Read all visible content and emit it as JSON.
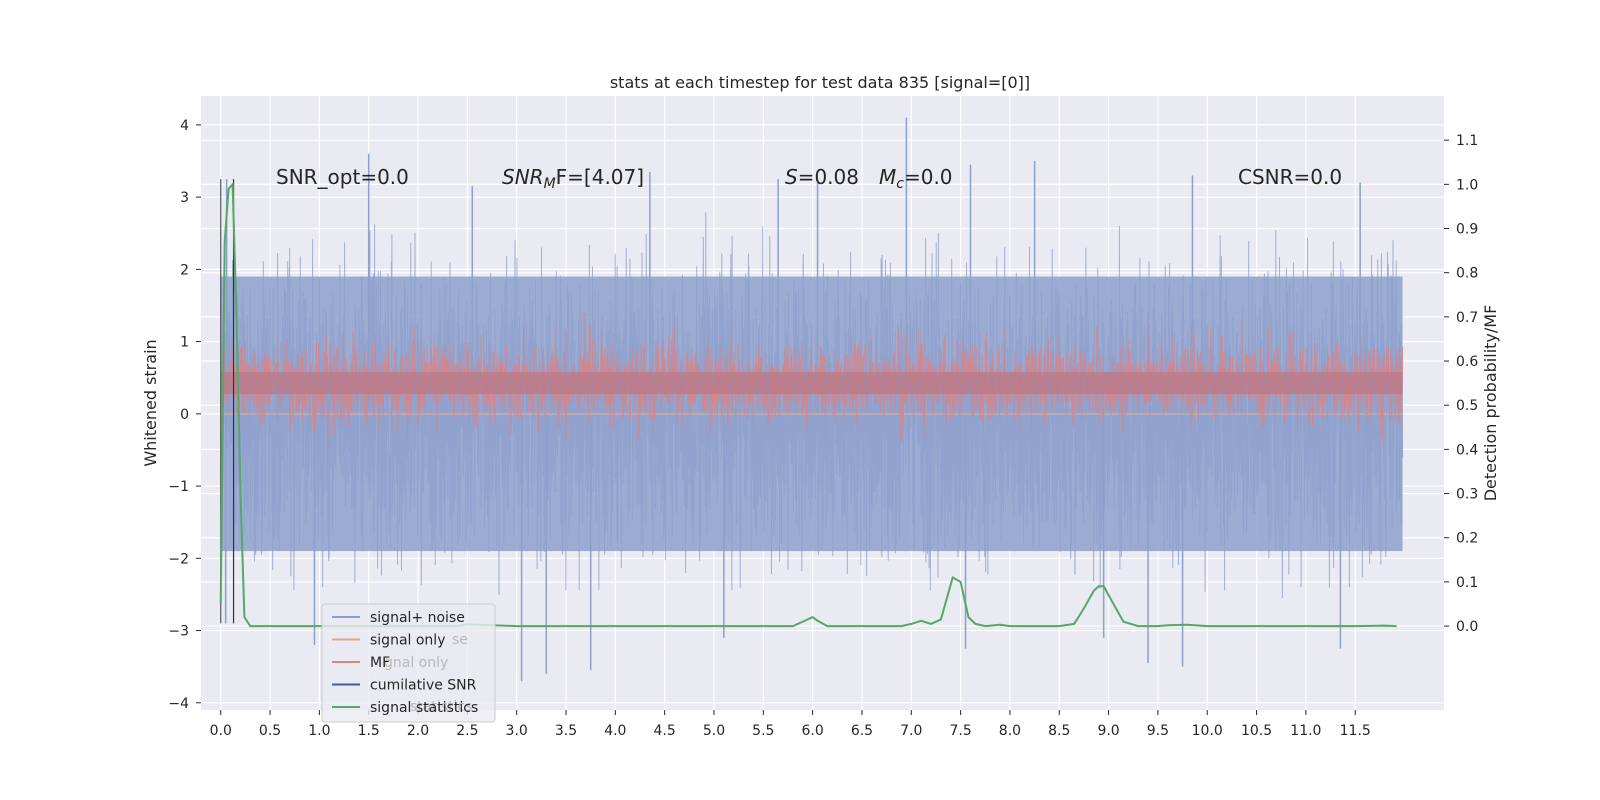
{
  "chart_data": {
    "type": "line",
    "title": "stats at each timestep for test data 835 [signal=[0]]",
    "ylabel": "Whitened strain",
    "ylabel_right": "Detection probability/MF",
    "xlim": [
      -0.2,
      12.4
    ],
    "ylim": [
      -4.1,
      4.4
    ],
    "ylim_right": [
      -0.19,
      1.2
    ],
    "x_ticks": [
      "0.0",
      "0.5",
      "1.0",
      "1.5",
      "2.0",
      "2.5",
      "3.0",
      "3.5",
      "4.0",
      "4.5",
      "5.0",
      "5.5",
      "6.0",
      "6.5",
      "7.0",
      "7.5",
      "8.0",
      "8.5",
      "9.0",
      "9.5",
      "10.0",
      "10.5",
      "11.0",
      "11.5"
    ],
    "x_tick_values": [
      0.0,
      0.5,
      1.0,
      1.5,
      2.0,
      2.5,
      3.0,
      3.5,
      4.0,
      4.5,
      5.0,
      5.5,
      6.0,
      6.5,
      7.0,
      7.5,
      8.0,
      8.5,
      9.0,
      9.5,
      10.0,
      10.5,
      11.0,
      11.5
    ],
    "y_ticks": [
      "4",
      "3",
      "2",
      "1",
      "0",
      "−1",
      "−2",
      "−3",
      "−4"
    ],
    "y_tick_values": [
      4,
      3,
      2,
      1,
      0,
      -1,
      -2,
      -3,
      -4
    ],
    "y_ticks_right": [
      "1.1",
      "1.0",
      "0.9",
      "0.8",
      "0.7",
      "0.6",
      "0.5",
      "0.4",
      "0.3",
      "0.2",
      "0.1",
      "0.0"
    ],
    "y_tick_values_right": [
      1.1,
      1.0,
      0.9,
      0.8,
      0.7,
      0.6,
      0.5,
      0.4,
      0.3,
      0.2,
      0.1,
      0.0
    ],
    "grid": true,
    "annotations": {
      "snr_opt": "SNR_opt=0.0",
      "snr_mf_main": "SNR",
      "snr_mf_sub": "M",
      "snr_mf_rest": "F=[4.07]",
      "s_main": "S",
      "s_rest": "=0.08",
      "mc_main": "M",
      "mc_sub": "c",
      "mc_rest": "=0.0",
      "csnr": "CSNR=0.0"
    },
    "legend": {
      "placement": "lower-left",
      "entries": [
        {
          "label": "signal+ noise",
          "color": "#8da0cb"
        },
        {
          "label": "signal only",
          "color": "#e0a58a"
        },
        {
          "label": "MF",
          "color": "#d98486"
        },
        {
          "label": "cumilative SNR",
          "color": "#3b5ba5"
        },
        {
          "label": "signal statistics",
          "color": "#55a868"
        }
      ],
      "ghost_entries": [
        "se",
        "gnal only",
        "statistics"
      ]
    },
    "series": [
      {
        "name": "signal+ noise",
        "color": "#8da0cb",
        "x_range": [
          0.0,
          11.98
        ],
        "band": [
          -1.9,
          1.9
        ],
        "peaks_high": [
          [
            0.06,
            3.25
          ],
          [
            1.5,
            3.6
          ],
          [
            2.55,
            3.15
          ],
          [
            4.35,
            3.35
          ],
          [
            5.65,
            3.25
          ],
          [
            6.05,
            3.25
          ],
          [
            6.95,
            4.1
          ],
          [
            7.6,
            3.45
          ],
          [
            8.25,
            3.5
          ],
          [
            9.85,
            3.3
          ],
          [
            11.55,
            3.2
          ]
        ],
        "peaks_low": [
          [
            0.05,
            -2.9
          ],
          [
            0.95,
            -3.2
          ],
          [
            3.05,
            -3.7
          ],
          [
            3.3,
            -3.6
          ],
          [
            3.75,
            -3.55
          ],
          [
            5.1,
            -3.1
          ],
          [
            7.55,
            -3.25
          ],
          [
            8.95,
            -3.1
          ],
          [
            9.4,
            -3.45
          ],
          [
            9.75,
            -3.5
          ],
          [
            11.35,
            -3.25
          ]
        ]
      },
      {
        "name": "signal only",
        "color": "#e0a58a",
        "x": [
          0.0,
          11.98
        ],
        "values": [
          0.0,
          0.0
        ]
      },
      {
        "name": "MF",
        "color": "#d98486",
        "x_range": [
          0.0,
          11.98
        ],
        "band_right": [
          0.5,
          0.6
        ],
        "peak_right": [
          0.05,
          0.65
        ]
      },
      {
        "name": "cumilative SNR",
        "color": "#3b5ba5",
        "x": [],
        "values": []
      },
      {
        "name": "signal statistics",
        "color": "#55a868",
        "x": [
          0.0,
          0.04,
          0.08,
          0.12,
          0.16,
          0.2,
          0.24,
          0.3,
          0.5,
          1.0,
          1.5,
          2.0,
          2.4,
          2.5,
          3.0,
          4.0,
          5.0,
          5.8,
          5.95,
          6.0,
          6.05,
          6.15,
          6.5,
          6.9,
          7.0,
          7.1,
          7.2,
          7.3,
          7.42,
          7.5,
          7.58,
          7.65,
          7.75,
          7.9,
          8.0,
          8.5,
          8.65,
          8.75,
          8.85,
          8.9,
          8.95,
          9.05,
          9.15,
          9.3,
          9.5,
          9.6,
          9.8,
          10.0,
          10.4,
          11.0,
          11.5,
          11.8,
          11.92
        ],
        "values": [
          0.05,
          0.87,
          0.99,
          1.0,
          0.7,
          0.3,
          0.02,
          0.0,
          0.0,
          0.0,
          0.0,
          0.0,
          0.0,
          0.004,
          0.0,
          0.0,
          0.0,
          0.0,
          0.015,
          0.02,
          0.012,
          0.0,
          0.0,
          0.0,
          0.005,
          0.012,
          0.005,
          0.015,
          0.11,
          0.1,
          0.02,
          0.005,
          0.0,
          0.003,
          0.0,
          0.0,
          0.005,
          0.04,
          0.08,
          0.09,
          0.09,
          0.05,
          0.01,
          0.0,
          0.0,
          0.002,
          0.003,
          0.0,
          0.0,
          0.0,
          0.0,
          0.001,
          0.0
        ]
      }
    ]
  }
}
